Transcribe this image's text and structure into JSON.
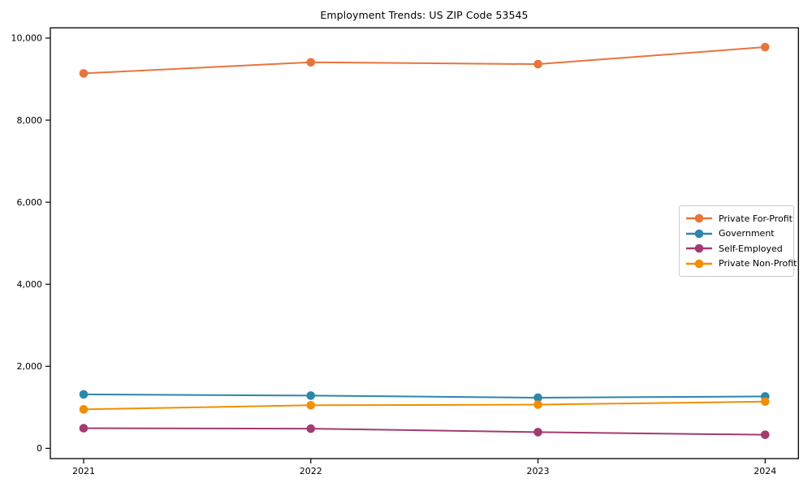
{
  "chart_data": {
    "type": "line",
    "title": "Employment Trends: US ZIP Code 53545",
    "xlabel": "",
    "ylabel": "",
    "x": [
      2021,
      2022,
      2023,
      2024
    ],
    "x_tick_labels": [
      "2021",
      "2022",
      "2023",
      "2024"
    ],
    "yticks": [
      0,
      2000,
      4000,
      6000,
      8000,
      10000
    ],
    "y_tick_labels": [
      "0",
      "2,000",
      "4,000",
      "6,000",
      "8,000",
      "10,000"
    ],
    "ylim": [
      -250,
      10250
    ],
    "grid": false,
    "legend_position": "center-right",
    "marker": "circle",
    "series": [
      {
        "name": "Private For-Profit",
        "color": "#E8743C",
        "values": [
          9140,
          9410,
          9365,
          9780
        ]
      },
      {
        "name": "Government",
        "color": "#2E86AB",
        "values": [
          1315,
          1285,
          1235,
          1265
        ]
      },
      {
        "name": "Self-Employed",
        "color": "#A23B72",
        "values": [
          490,
          480,
          395,
          330
        ]
      },
      {
        "name": "Private Non-Profit",
        "color": "#F18F01",
        "values": [
          950,
          1050,
          1065,
          1140
        ]
      }
    ],
    "axis_color": "#000000",
    "background_color": "#ffffff"
  }
}
